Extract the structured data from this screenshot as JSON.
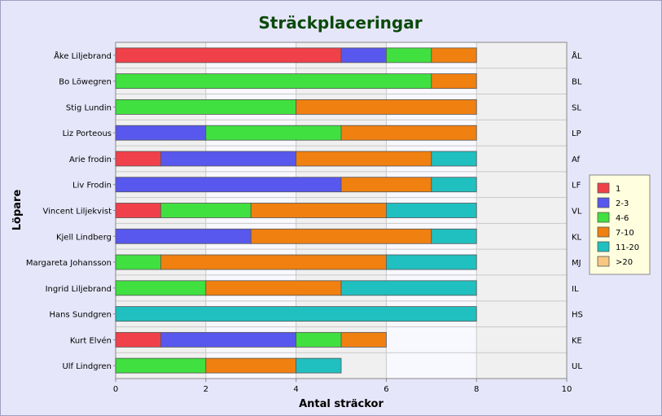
{
  "chart_data": {
    "type": "bar",
    "orientation": "horizontal",
    "stacked": true,
    "title": "Sträckplaceringar",
    "xlabel": "Antal sträckor",
    "ylabel": "Löpare",
    "xlim": [
      0,
      10
    ],
    "xticks": [
      0,
      2,
      4,
      6,
      8,
      10
    ],
    "grid": true,
    "legend_position": "right",
    "categories": [
      "Åke Liljebrand",
      "Bo Löwegren",
      "Stig Lundin",
      "Liz Porteous",
      "Arie frodin",
      "Liv Frodin",
      "Vincent Liljekvist",
      "Kjell Lindberg",
      "Margareta Johansson",
      "Ingrid Liljebrand",
      "Hans Sundgren",
      "Kurt Elvén",
      "Ulf Lindgren"
    ],
    "right_labels": [
      "ÅL",
      "BL",
      "SL",
      "LP",
      "Af",
      "LF",
      "VL",
      "KL",
      "MJ",
      "IL",
      "HS",
      "KE",
      "UL"
    ],
    "series": [
      {
        "name": "1",
        "color": "#f0404a",
        "values": [
          5,
          0,
          0,
          0,
          1,
          0,
          1,
          0,
          0,
          0,
          0,
          1,
          0
        ]
      },
      {
        "name": "2-3",
        "color": "#5858ee",
        "values": [
          1,
          0,
          0,
          2,
          3,
          5,
          0,
          3,
          0,
          0,
          0,
          3,
          0
        ]
      },
      {
        "name": "4-6",
        "color": "#40e040",
        "values": [
          1,
          7,
          4,
          3,
          0,
          0,
          2,
          0,
          1,
          2,
          0,
          1,
          2
        ]
      },
      {
        "name": "7-10",
        "color": "#f08010",
        "values": [
          1,
          1,
          4,
          3,
          3,
          2,
          3,
          4,
          5,
          3,
          0,
          1,
          2
        ]
      },
      {
        "name": "11-20",
        "color": "#20c0c0",
        "values": [
          0,
          0,
          0,
          0,
          1,
          1,
          2,
          1,
          2,
          3,
          8,
          0,
          1
        ]
      },
      {
        "name": ">20",
        "color": "#f8c880",
        "values": [
          0,
          0,
          0,
          0,
          0,
          0,
          0,
          0,
          0,
          0,
          0,
          0,
          0
        ]
      }
    ]
  },
  "colors": {
    "title": "#0a4a0a",
    "panel_background": "#e6e6fa",
    "plot_background": "#f0f0f0",
    "plot_background_alt": "#f8f8ff",
    "legend_background": "#ffffe0"
  }
}
